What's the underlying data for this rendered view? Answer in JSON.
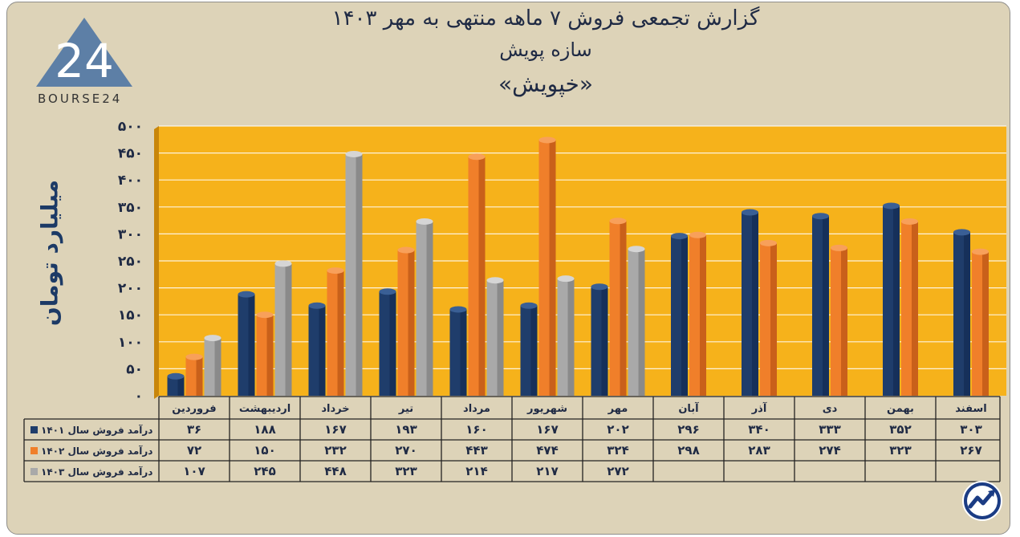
{
  "header": {
    "title_line1": "گزارش تجمعی فروش ۷ ماهه منتهی به مهر ۱۴۰۳",
    "title_line2": "سازه پویش",
    "title_line3": "«خپویش»"
  },
  "logo": {
    "text": "BOURSE24",
    "mark": "24"
  },
  "chart_data": {
    "type": "bar",
    "ylabel": "میلیارد تومان",
    "ylim": [
      0,
      500
    ],
    "yticks": [
      "۰",
      "۵۰",
      "۱۰۰",
      "۱۵۰",
      "۲۰۰",
      "۲۵۰",
      "۳۰۰",
      "۳۵۰",
      "۴۰۰",
      "۴۵۰",
      "۵۰۰"
    ],
    "categories": [
      "فروردین",
      "اردیبهشت",
      "خرداد",
      "تیر",
      "مرداد",
      "شهریور",
      "مهر",
      "آبان",
      "آذر",
      "دی",
      "بهمن",
      "اسفند"
    ],
    "series": [
      {
        "name": "درآمد فروش سال ۱۴۰۱",
        "color": "#1f3d6b",
        "values": [
          36,
          188,
          167,
          193,
          160,
          167,
          202,
          296,
          340,
          333,
          352,
          303
        ],
        "labels": [
          "۳۶",
          "۱۸۸",
          "۱۶۷",
          "۱۹۳",
          "۱۶۰",
          "۱۶۷",
          "۲۰۲",
          "۲۹۶",
          "۳۴۰",
          "۳۳۳",
          "۳۵۲",
          "۳۰۳"
        ]
      },
      {
        "name": "درآمد فروش سال ۱۴۰۲",
        "color": "#f07f2a",
        "values": [
          72,
          150,
          232,
          270,
          443,
          474,
          324,
          298,
          283,
          274,
          323,
          267
        ],
        "labels": [
          "۷۲",
          "۱۵۰",
          "۲۳۲",
          "۲۷۰",
          "۴۴۳",
          "۴۷۴",
          "۳۲۴",
          "۲۹۸",
          "۲۸۳",
          "۲۷۴",
          "۳۲۳",
          "۲۶۷"
        ]
      },
      {
        "name": "درآمد فروش سال ۱۴۰۳",
        "color": "#a9a9a9",
        "values": [
          107,
          245,
          448,
          323,
          214,
          217,
          272,
          null,
          null,
          null,
          null,
          null
        ],
        "labels": [
          "۱۰۷",
          "۲۴۵",
          "۴۴۸",
          "۳۲۳",
          "۲۱۴",
          "۲۱۷",
          "۲۷۲",
          "",
          "",
          "",
          "",
          ""
        ]
      }
    ],
    "plot_background": "#f6b21b",
    "grid": true
  }
}
